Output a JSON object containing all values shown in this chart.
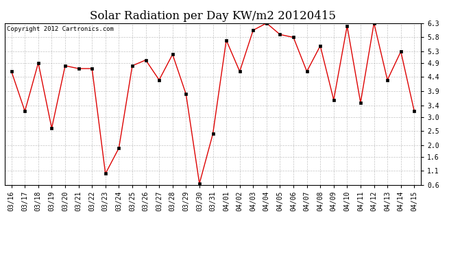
{
  "title": "Solar Radiation per Day KW/m2 20120415",
  "copyright_text": "Copyright 2012 Cartronics.com",
  "labels": [
    "03/16",
    "03/17",
    "03/18",
    "03/19",
    "03/20",
    "03/21",
    "03/22",
    "03/23",
    "03/24",
    "03/25",
    "03/26",
    "03/27",
    "03/28",
    "03/29",
    "03/30",
    "03/31",
    "04/01",
    "04/02",
    "04/03",
    "04/04",
    "04/05",
    "04/06",
    "04/07",
    "04/08",
    "04/09",
    "04/10",
    "04/11",
    "04/12",
    "04/13",
    "04/14",
    "04/15"
  ],
  "values": [
    4.6,
    3.2,
    4.9,
    2.6,
    4.8,
    4.7,
    4.7,
    1.0,
    1.9,
    4.8,
    5.0,
    4.3,
    5.2,
    3.8,
    0.65,
    2.4,
    5.7,
    4.6,
    6.05,
    6.3,
    5.9,
    5.8,
    4.6,
    5.5,
    3.6,
    6.2,
    3.5,
    6.3,
    4.3,
    5.3,
    3.2
  ],
  "line_color": "#dd0000",
  "marker": "s",
  "marker_size": 2.5,
  "ylim": [
    0.6,
    6.3
  ],
  "yticks": [
    0.6,
    1.1,
    1.6,
    2.0,
    2.5,
    3.0,
    3.4,
    3.9,
    4.4,
    4.9,
    5.3,
    5.8,
    6.3
  ],
  "background_color": "#ffffff",
  "grid_color": "#aaaaaa",
  "title_fontsize": 12,
  "tick_fontsize": 7,
  "copyright_fontsize": 6.5
}
